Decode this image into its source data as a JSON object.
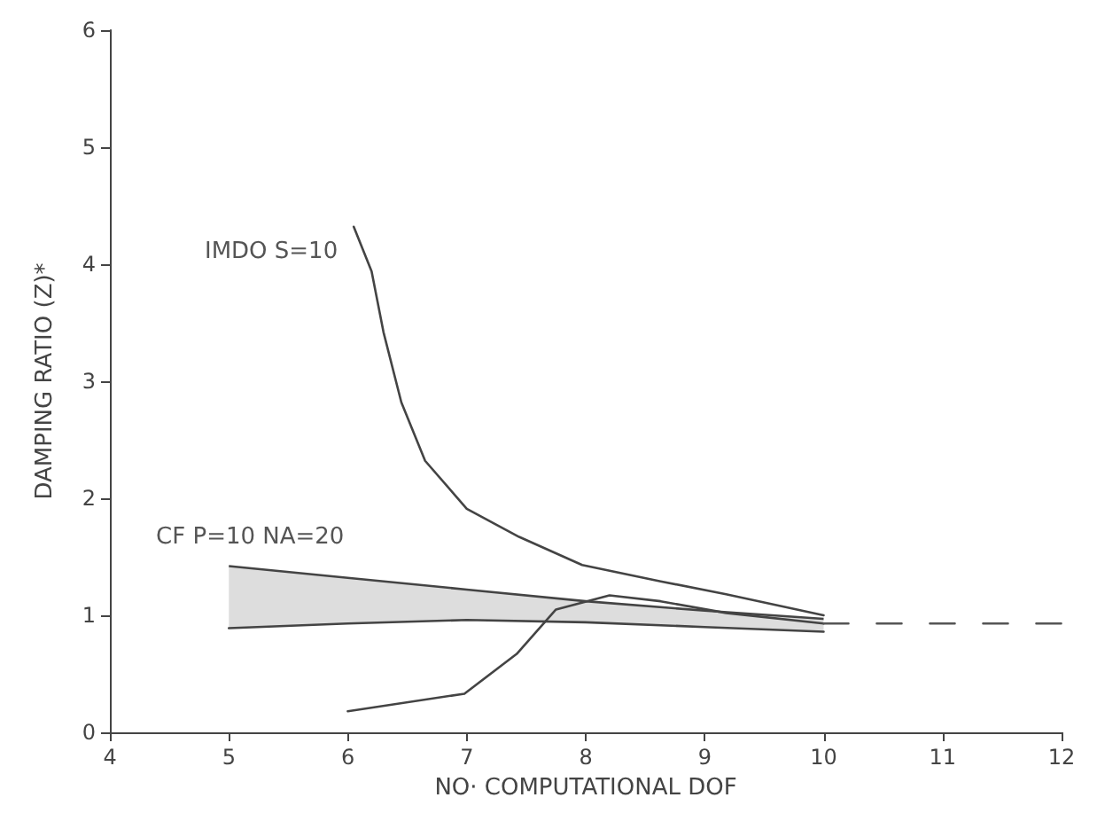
{
  "chart_data": {
    "type": "line",
    "xlabel": "NO· COMPUTATIONAL DOF",
    "ylabel": "DAMPING RATIO (Z)*",
    "xlim": [
      4,
      12
    ],
    "xticks": [
      4,
      5,
      6,
      7,
      8,
      9,
      10,
      11,
      12
    ],
    "ylim": [
      0,
      6
    ],
    "yticks": [
      0,
      1,
      2,
      3,
      4,
      5,
      6
    ],
    "grid": false,
    "legend": false,
    "marker": "none",
    "series": [
      {
        "name": "IMDO S=10",
        "color": "#444444",
        "x": [
          6.05,
          6.2,
          6.3,
          6.45,
          6.65,
          7.0,
          7.44,
          7.97,
          8.63,
          9.18,
          10
        ],
        "values": [
          4.32,
          3.94,
          3.42,
          2.82,
          2.32,
          1.91,
          1.67,
          1.43,
          1.29,
          1.18,
          1.0
        ]
      },
      {
        "name": "CF P=10 NA=20",
        "color": "#444444",
        "x": [
          5,
          6,
          7,
          8,
          9,
          10
        ],
        "values": [
          0.89,
          0.93,
          0.96,
          0.94,
          0.9,
          0.86
        ],
        "lower": [
          0.89,
          0.93,
          0.96,
          0.94,
          0.9,
          0.86
        ],
        "upper": [
          1.42,
          1.32,
          1.22,
          1.12,
          1.04,
          0.97
        ]
      },
      {
        "color": "#444444",
        "x": [
          6.0,
          6.98,
          7.42,
          7.75,
          8.2,
          8.63,
          9.18,
          10
        ],
        "values": [
          0.18,
          0.33,
          0.67,
          1.05,
          1.17,
          1.12,
          1.02,
          0.93
        ]
      },
      {
        "color": "#555555",
        "line_style": "dashed",
        "x": [
          10,
          12
        ],
        "values": [
          0.93,
          0.93
        ]
      }
    ]
  }
}
